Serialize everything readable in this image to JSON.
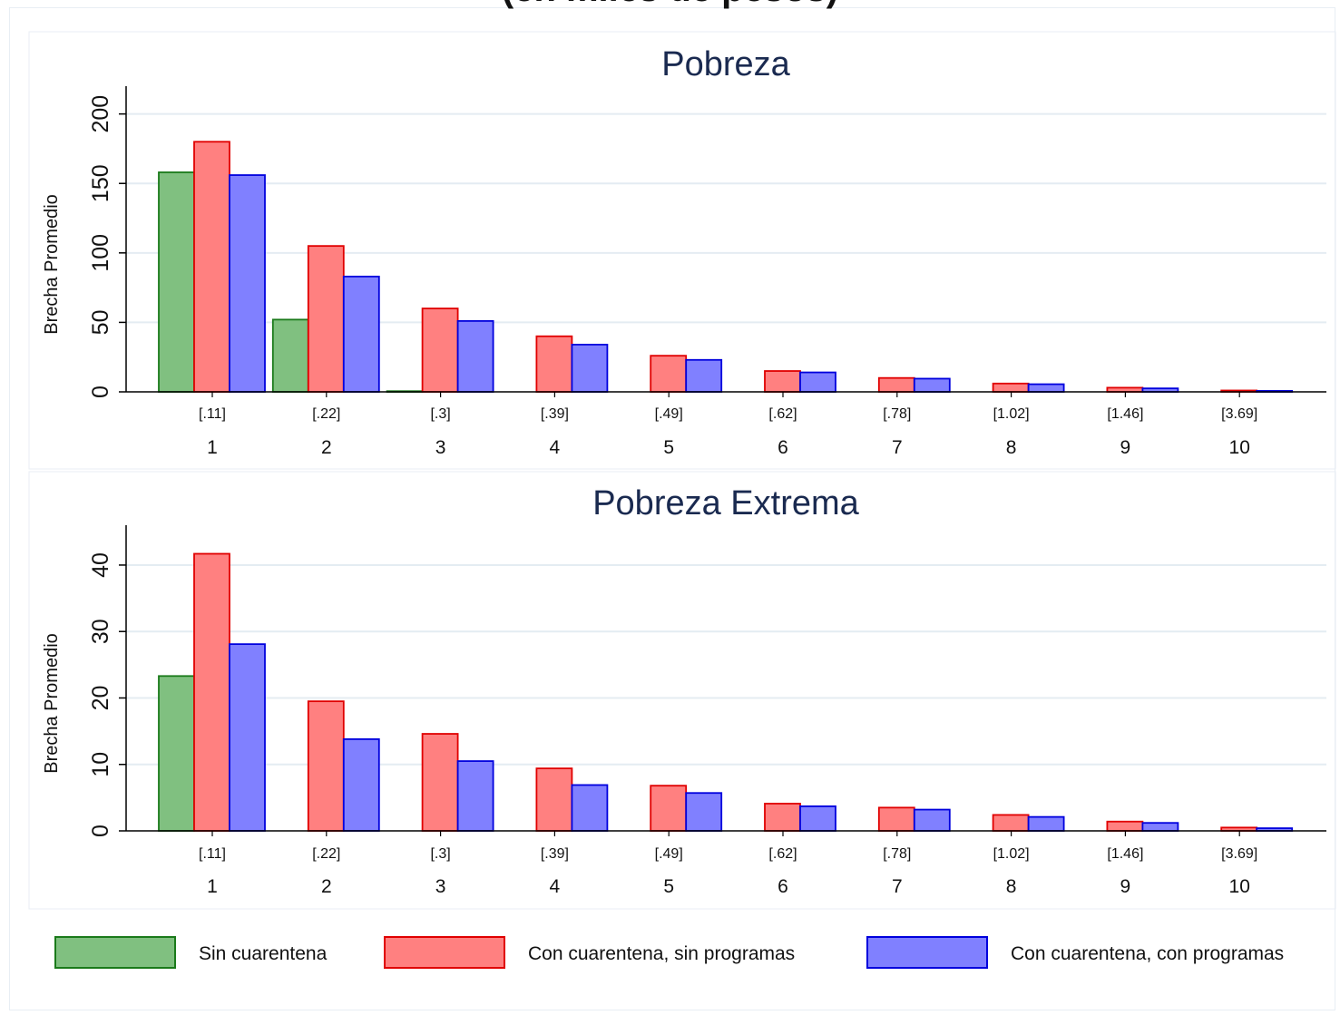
{
  "title": "(en miles de pesos)",
  "colors": {
    "sin": "#80c080",
    "sin_border": "#1a7a1a",
    "con_sin": "#ff8080",
    "con_sin_border": "#e00000",
    "con_con": "#8080ff",
    "con_con_border": "#0000dd",
    "grid": "#e4ecf2",
    "title": "#1a2a50"
  },
  "legend": {
    "items": [
      {
        "label": "Sin cuarentena"
      },
      {
        "label": "Con cuarentena, sin programas"
      },
      {
        "label": "Con cuarentena, con programas"
      }
    ]
  },
  "chart_data": [
    {
      "type": "bar",
      "title": "Pobreza",
      "ylabel": "Brecha Promedio",
      "xlabel": "",
      "categories": [
        "1",
        "2",
        "3",
        "4",
        "5",
        "6",
        "7",
        "8",
        "9",
        "10"
      ],
      "sublabels": [
        "[.11]",
        "[.22]",
        "[.3]",
        "[.39]",
        "[.49]",
        "[.62]",
        "[.78]",
        "[1.02]",
        "[1.46]",
        "[3.69]"
      ],
      "yticks": [
        0,
        50,
        100,
        150,
        200
      ],
      "ylim": [
        0,
        220
      ],
      "grid": true,
      "series": [
        {
          "name": "Sin cuarentena",
          "values": [
            158,
            52,
            0.5,
            0,
            0,
            0,
            0,
            0,
            0,
            0
          ]
        },
        {
          "name": "Con cuarentena, sin programas",
          "values": [
            180,
            105,
            60,
            40,
            26,
            15,
            10,
            6,
            3,
            1
          ]
        },
        {
          "name": "Con cuarentena, con programas",
          "values": [
            156,
            83,
            51,
            34,
            23,
            14,
            9.5,
            5.5,
            2.5,
            0.7
          ]
        }
      ]
    },
    {
      "type": "bar",
      "title": "Pobreza Extrema",
      "ylabel": "Brecha Promedio",
      "xlabel": "",
      "categories": [
        "1",
        "2",
        "3",
        "4",
        "5",
        "6",
        "7",
        "8",
        "9",
        "10"
      ],
      "sublabels": [
        "[.11]",
        "[.22]",
        "[.3]",
        "[.39]",
        "[.49]",
        "[.62]",
        "[.78]",
        "[1.02]",
        "[1.46]",
        "[3.69]"
      ],
      "yticks": [
        0,
        10,
        20,
        30,
        40
      ],
      "ylim": [
        0,
        46
      ],
      "grid": true,
      "series": [
        {
          "name": "Sin cuarentena",
          "values": [
            23.3,
            0,
            0,
            0,
            0,
            0,
            0,
            0,
            0,
            0
          ]
        },
        {
          "name": "Con cuarentena, sin programas",
          "values": [
            41.7,
            19.5,
            14.6,
            9.4,
            6.8,
            4.1,
            3.5,
            2.4,
            1.4,
            0.5
          ]
        },
        {
          "name": "Con cuarentena, con programas",
          "values": [
            28.1,
            13.8,
            10.5,
            6.9,
            5.7,
            3.7,
            3.2,
            2.1,
            1.2,
            0.4
          ]
        }
      ]
    }
  ]
}
